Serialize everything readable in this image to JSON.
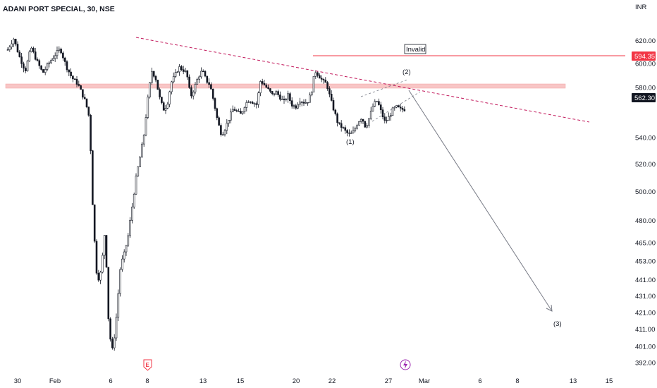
{
  "chart_data": {
    "type": "candlestick",
    "title": "ADANI PORT SPECIAL, 30, NSE",
    "currency_label": "INR",
    "y_scale": "log",
    "ylim": [
      388,
      640
    ],
    "y_ticks": [
      620,
      600,
      580,
      562.3,
      540,
      520,
      500,
      480,
      465,
      453,
      441,
      431,
      421,
      411,
      401,
      392
    ],
    "y_tick_labels": [
      "620.00",
      "600.00",
      "580.00",
      "562.30",
      "540.00",
      "520.00",
      "500.00",
      "480.00",
      "465.00",
      "453.00",
      "441.00",
      "431.00",
      "421.00",
      "411.00",
      "401.00",
      "392.00"
    ],
    "x_tick_labels": [
      "30",
      "Feb",
      "6",
      "8",
      "13",
      "15",
      "20",
      "22",
      "27",
      "Mar",
      "6",
      "8",
      "13",
      "15"
    ],
    "last_price": "562.30",
    "invalidation_price": "594.35",
    "invalid_label": "Invalid",
    "wave_labels": [
      "(1)",
      "(2)",
      "(3)"
    ],
    "event_markers": [
      "E",
      "dividend"
    ],
    "colors": {
      "candle": "#131722",
      "zone": "#f8c6c6",
      "invalid_line": "#f23645",
      "trend_line": "#c2185b",
      "projection": "#787b86",
      "last_price_bg": "#131722",
      "invalid_price_bg": "#f23645",
      "earnings_marker": "#f23645",
      "dividend_marker": "#9c27b0"
    },
    "ohlc_path": [
      [
        0,
        612
      ],
      [
        3,
        622
      ],
      [
        6,
        606
      ],
      [
        9,
        594
      ],
      [
        12,
        614
      ],
      [
        15,
        602
      ],
      [
        18,
        592
      ],
      [
        21,
        600
      ],
      [
        24,
        607
      ],
      [
        27,
        613
      ],
      [
        30,
        598
      ],
      [
        33,
        588
      ],
      [
        36,
        583
      ],
      [
        40,
        568
      ],
      [
        42,
        555
      ],
      [
        44,
        478
      ],
      [
        46,
        440
      ],
      [
        48,
        446
      ],
      [
        50,
        474
      ],
      [
        52,
        410
      ],
      [
        54,
        398
      ],
      [
        56,
        420
      ],
      [
        58,
        450
      ],
      [
        60,
        458
      ],
      [
        62,
        470
      ],
      [
        64,
        490
      ],
      [
        66,
        510
      ],
      [
        68,
        525
      ],
      [
        70,
        542
      ],
      [
        72,
        570
      ],
      [
        74,
        594
      ],
      [
        76,
        588
      ],
      [
        78,
        572
      ],
      [
        80,
        562
      ],
      [
        82,
        566
      ],
      [
        84,
        584
      ],
      [
        86,
        590
      ],
      [
        88,
        597
      ],
      [
        90,
        595
      ],
      [
        92,
        592
      ],
      [
        94,
        572
      ],
      [
        96,
        580
      ],
      [
        98,
        589
      ],
      [
        100,
        594
      ],
      [
        102,
        586
      ],
      [
        104,
        582
      ],
      [
        106,
        568
      ],
      [
        108,
        552
      ],
      [
        110,
        542
      ],
      [
        112,
        548
      ],
      [
        114,
        556
      ],
      [
        116,
        563
      ],
      [
        118,
        560
      ],
      [
        120,
        558
      ],
      [
        122,
        566
      ],
      [
        124,
        570
      ],
      [
        126,
        568
      ],
      [
        128,
        566
      ],
      [
        130,
        586
      ],
      [
        132,
        582
      ],
      [
        134,
        578
      ],
      [
        136,
        574
      ],
      [
        138,
        576
      ],
      [
        140,
        572
      ],
      [
        142,
        568
      ],
      [
        144,
        574
      ],
      [
        146,
        566
      ],
      [
        148,
        564
      ],
      [
        150,
        570
      ],
      [
        152,
        568
      ],
      [
        154,
        568
      ],
      [
        156,
        575
      ],
      [
        158,
        594
      ],
      [
        160,
        590
      ],
      [
        162,
        585
      ],
      [
        164,
        583
      ],
      [
        166,
        570
      ],
      [
        168,
        560
      ],
      [
        170,
        550
      ],
      [
        172,
        548
      ],
      [
        174,
        544
      ],
      [
        176,
        542
      ],
      [
        178,
        545
      ],
      [
        180,
        552
      ],
      [
        182,
        556
      ],
      [
        184,
        548
      ],
      [
        186,
        556
      ],
      [
        188,
        566
      ],
      [
        190,
        569
      ],
      [
        192,
        560
      ],
      [
        194,
        552
      ],
      [
        196,
        556
      ],
      [
        198,
        562
      ],
      [
        200,
        564
      ],
      [
        202,
        562
      ],
      [
        204,
        562.3
      ]
    ]
  },
  "time_axis_end": 320
}
